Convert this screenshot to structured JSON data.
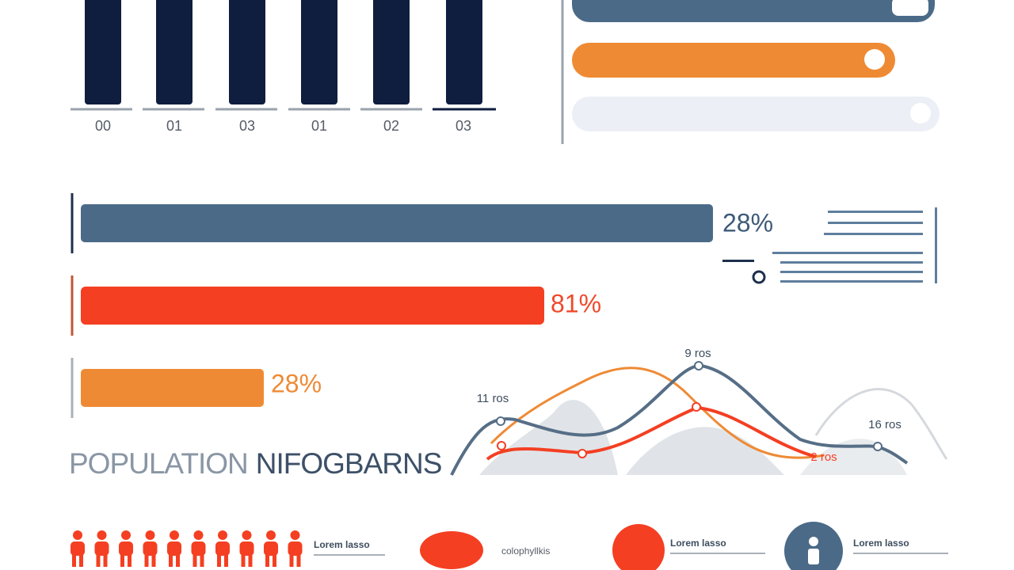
{
  "top_chart": {
    "labels": [
      "00",
      "01",
      "03",
      "01",
      "02",
      "03"
    ]
  },
  "progress": [
    {
      "label": "28%"
    },
    {
      "label": "81%"
    },
    {
      "label": "28%"
    }
  ],
  "line_chart": {
    "labels": [
      "9 ros",
      "11 ros",
      "16 ros",
      "2 ros"
    ]
  },
  "title": {
    "part1": "POPULATION",
    "part2": "NIFOGBARNS"
  },
  "legend": [
    {
      "text": "Lorem lasso"
    },
    {
      "text": "colophyllkis"
    },
    {
      "text": "Lorem lasso"
    },
    {
      "text": "Lorem lasso"
    }
  ]
}
